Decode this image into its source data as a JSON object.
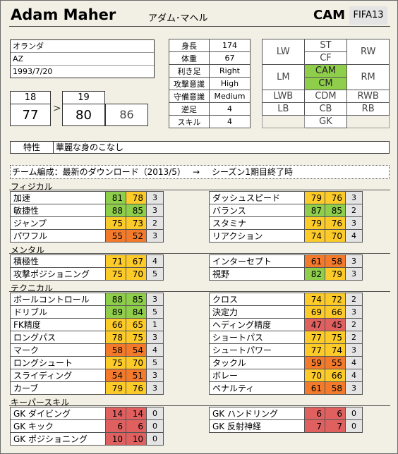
{
  "player": {
    "name": "Adam Maher",
    "kana": "アダム･マヘル",
    "position": "CAM",
    "version": "FIFA13"
  },
  "info": {
    "country": "オランダ",
    "club": "AZ",
    "birth": "1993/7/20"
  },
  "ages": {
    "age1": "18",
    "age2": "19",
    "ovr1": "77",
    "ovr2": "80",
    "potential": "86"
  },
  "body": [
    {
      "k": "身長",
      "v": "174"
    },
    {
      "k": "体重",
      "v": "67"
    },
    {
      "k": "利き足",
      "v": "Right"
    },
    {
      "k": "攻撃意識",
      "v": "High"
    },
    {
      "k": "守備意識",
      "v": "Medium"
    },
    {
      "k": "逆足",
      "v": "4"
    },
    {
      "k": "スキル",
      "v": "4"
    }
  ],
  "positions": {
    "lw": "LW",
    "st": "ST",
    "rw": "RW",
    "cf": "CF",
    "lm": "LM",
    "cam": "CAM",
    "rm": "RM",
    "cm": "CM",
    "lwb": "LWB",
    "cdm": "CDM",
    "rwb": "RWB",
    "lb": "LB",
    "cb": "CB",
    "rb": "RB",
    "gk": "GK"
  },
  "trait": {
    "label": "特性",
    "value": "華麗な身のこなし"
  },
  "note": {
    "text": "チーム編成：最新のダウンロード（2013/5）",
    "arrow": "→",
    "after": "シーズン1期目終了時"
  },
  "sections": {
    "physical": "フィジカル",
    "mental": "メンタル",
    "technical": "テクニカル",
    "keeper": "キーパースキル"
  },
  "stats": {
    "physical_left": [
      {
        "name": "加速",
        "a": 81,
        "b": 78,
        "d": "3"
      },
      {
        "name": "敏捷性",
        "a": 88,
        "b": 85,
        "d": "3"
      },
      {
        "name": "ジャンプ",
        "a": 75,
        "b": 73,
        "d": "2"
      },
      {
        "name": "パワフル",
        "a": 55,
        "b": 52,
        "d": "3"
      }
    ],
    "physical_right": [
      {
        "name": "ダッシュスピード",
        "a": 79,
        "b": 76,
        "d": "3"
      },
      {
        "name": "バランス",
        "a": 87,
        "b": 85,
        "d": "2"
      },
      {
        "name": "スタミナ",
        "a": 79,
        "b": 76,
        "d": "3"
      },
      {
        "name": "リアクション",
        "a": 74,
        "b": 70,
        "d": "4"
      }
    ],
    "mental_left": [
      {
        "name": "積極性",
        "a": 71,
        "b": 67,
        "d": "4"
      },
      {
        "name": "攻撃ポジショニング",
        "a": 75,
        "b": 70,
        "d": "5"
      }
    ],
    "mental_right": [
      {
        "name": "インターセプト",
        "a": 61,
        "b": 58,
        "d": "3"
      },
      {
        "name": "視野",
        "a": 82,
        "b": 79,
        "d": "3"
      }
    ],
    "technical_left": [
      {
        "name": "ボールコントロール",
        "a": 88,
        "b": 85,
        "d": "3"
      },
      {
        "name": "ドリブル",
        "a": 89,
        "b": 84,
        "d": "5"
      },
      {
        "name": "FK精度",
        "a": 66,
        "b": 65,
        "d": "1"
      },
      {
        "name": "ロングパス",
        "a": 78,
        "b": 75,
        "d": "3"
      },
      {
        "name": "マーク",
        "a": 58,
        "b": 54,
        "d": "4"
      },
      {
        "name": "ロングシュート",
        "a": 75,
        "b": 70,
        "d": "5"
      },
      {
        "name": "スライディング",
        "a": 54,
        "b": 51,
        "d": "3"
      },
      {
        "name": "カーブ",
        "a": 79,
        "b": 76,
        "d": "3"
      }
    ],
    "technical_right": [
      {
        "name": "クロス",
        "a": 74,
        "b": 72,
        "d": "2"
      },
      {
        "name": "決定力",
        "a": 69,
        "b": 66,
        "d": "3"
      },
      {
        "name": "ヘディング精度",
        "a": 47,
        "b": 45,
        "d": "2"
      },
      {
        "name": "ショートパス",
        "a": 77,
        "b": 75,
        "d": "2"
      },
      {
        "name": "シュートパワー",
        "a": 77,
        "b": 74,
        "d": "3"
      },
      {
        "name": "タックル",
        "a": 59,
        "b": 55,
        "d": "4"
      },
      {
        "name": "ボレー",
        "a": 70,
        "b": 66,
        "d": "4"
      },
      {
        "name": "ペナルティ",
        "a": 61,
        "b": 58,
        "d": "3"
      }
    ],
    "keeper_left": [
      {
        "name": "GK ダイビング",
        "a": 14,
        "b": 14,
        "d": "0"
      },
      {
        "name": "GK キック",
        "a": 6,
        "b": 6,
        "d": "0"
      },
      {
        "name": "GK ポジショニング",
        "a": 10,
        "b": 10,
        "d": "0"
      }
    ],
    "keeper_right": [
      {
        "name": "GK ハンドリング",
        "a": 6,
        "b": 6,
        "d": "0"
      },
      {
        "name": "GK 反射神経",
        "a": 7,
        "b": 7,
        "d": "0"
      }
    ]
  },
  "colors": {
    "green": "#8fce4b",
    "yellow": "#fccb2a",
    "orange": "#f27a2a",
    "red": "#e06060"
  }
}
